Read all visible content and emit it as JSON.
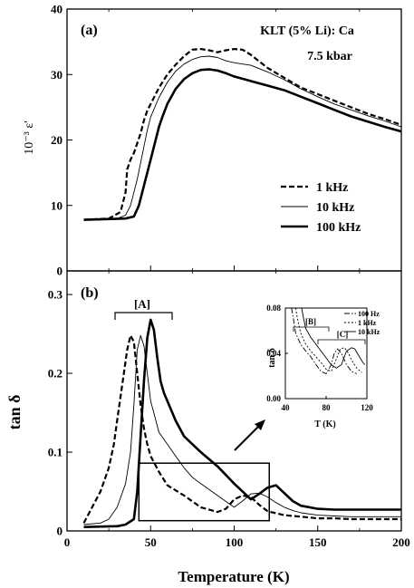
{
  "chart_data": [
    {
      "panel": "(a)",
      "type": "line",
      "annotation": [
        "KLT (5% Li): Ca",
        "7.5 kbar"
      ],
      "ylabel": "10⁻³ ε'",
      "xlim": [
        0,
        200
      ],
      "ylim": [
        0,
        40
      ],
      "yticks": [
        0,
        10,
        20,
        30,
        40
      ],
      "legend_position": "lower-right",
      "series": [
        {
          "name": "1 kHz",
          "style": "dashed",
          "x": [
            10,
            25,
            32,
            35,
            36,
            38,
            40,
            42,
            44,
            46,
            48,
            50,
            55,
            60,
            65,
            70,
            75,
            80,
            85,
            90,
            95,
            100,
            105,
            110,
            120,
            130,
            140,
            150,
            160,
            170,
            180,
            190,
            200
          ],
          "y": [
            7.8,
            8.0,
            9.0,
            12.0,
            15.5,
            17.0,
            18.0,
            19.5,
            21.0,
            23.0,
            24.5,
            25.5,
            28.0,
            30.0,
            31.5,
            32.8,
            33.8,
            33.9,
            33.7,
            33.4,
            33.7,
            33.9,
            33.8,
            33.0,
            31.0,
            29.5,
            28.0,
            27.0,
            26.0,
            25.0,
            24.0,
            23.2,
            22.3
          ]
        },
        {
          "name": "10 kHz",
          "style": "thin",
          "x": [
            10,
            30,
            35,
            38,
            40,
            42,
            44,
            46,
            48,
            50,
            55,
            60,
            65,
            70,
            75,
            80,
            85,
            90,
            95,
            100,
            105,
            110,
            120,
            130,
            140,
            150,
            160,
            170,
            180,
            190,
            200
          ],
          "y": [
            7.8,
            8.0,
            8.5,
            10.0,
            12.0,
            14.0,
            16.5,
            19.0,
            21.5,
            23.5,
            26.5,
            28.8,
            30.5,
            31.6,
            32.3,
            32.7,
            32.8,
            32.6,
            32.1,
            31.8,
            31.6,
            31.4,
            30.4,
            29.2,
            27.8,
            26.6,
            25.5,
            24.6,
            23.7,
            22.9,
            22.0
          ]
        },
        {
          "name": "100 kHz",
          "style": "thick",
          "x": [
            10,
            35,
            40,
            43,
            45,
            47,
            50,
            53,
            55,
            57,
            60,
            65,
            70,
            75,
            80,
            85,
            90,
            95,
            100,
            110,
            120,
            130,
            140,
            150,
            160,
            170,
            180,
            190,
            200
          ],
          "y": [
            7.8,
            8.0,
            8.3,
            10.0,
            12.0,
            14.0,
            17.0,
            20.0,
            22.0,
            23.5,
            25.5,
            27.8,
            29.3,
            30.2,
            30.7,
            30.8,
            30.6,
            30.2,
            29.7,
            29.0,
            28.3,
            27.6,
            26.6,
            25.6,
            24.6,
            23.6,
            22.8,
            22.0,
            21.3
          ]
        }
      ]
    },
    {
      "panel": "(b)",
      "type": "line",
      "xlabel": "Temperature (K)",
      "ylabel": "tan δ",
      "xlim": [
        0,
        200
      ],
      "ylim": [
        0,
        0.33
      ],
      "yticks": [
        0,
        0.1,
        0.2,
        0.3
      ],
      "xticks": [
        0,
        50,
        100,
        150,
        200
      ],
      "bracket_label": "[A]",
      "series": [
        {
          "name": "1 kHz",
          "style": "dashed",
          "x": [
            10,
            15,
            20,
            25,
            28,
            30,
            32,
            34,
            36,
            38,
            40,
            42,
            44,
            46,
            48,
            50,
            55,
            60,
            70,
            80,
            90,
            95,
            100,
            105,
            110,
            115,
            120,
            130,
            140,
            150,
            160,
            170,
            180,
            190,
            200
          ],
          "y": [
            0.01,
            0.03,
            0.05,
            0.08,
            0.11,
            0.14,
            0.17,
            0.2,
            0.23,
            0.248,
            0.24,
            0.2,
            0.16,
            0.13,
            0.11,
            0.095,
            0.075,
            0.058,
            0.045,
            0.03,
            0.024,
            0.028,
            0.04,
            0.045,
            0.043,
            0.033,
            0.025,
            0.02,
            0.018,
            0.016,
            0.016,
            0.015,
            0.015,
            0.015,
            0.015
          ]
        },
        {
          "name": "10 kHz",
          "style": "thin",
          "x": [
            10,
            20,
            25,
            30,
            35,
            38,
            40,
            42,
            44,
            46,
            48,
            50,
            55,
            60,
            65,
            70,
            75,
            80,
            90,
            100,
            105,
            110,
            115,
            120,
            125,
            130,
            135,
            140,
            150,
            160,
            170,
            180,
            190,
            200
          ],
          "y": [
            0.008,
            0.01,
            0.015,
            0.03,
            0.06,
            0.1,
            0.16,
            0.23,
            0.248,
            0.235,
            0.2,
            0.165,
            0.125,
            0.11,
            0.095,
            0.08,
            0.068,
            0.06,
            0.045,
            0.03,
            0.038,
            0.047,
            0.048,
            0.043,
            0.036,
            0.03,
            0.026,
            0.023,
            0.02,
            0.019,
            0.018,
            0.018,
            0.018,
            0.018
          ]
        },
        {
          "name": "100 kHz",
          "style": "thick",
          "x": [
            10,
            30,
            35,
            40,
            42,
            44,
            46,
            48,
            50,
            52,
            54,
            56,
            58,
            60,
            65,
            70,
            75,
            80,
            90,
            100,
            110,
            115,
            120,
            125,
            130,
            135,
            140,
            150,
            160,
            170,
            180,
            190,
            200
          ],
          "y": [
            0.005,
            0.006,
            0.008,
            0.015,
            0.05,
            0.12,
            0.19,
            0.245,
            0.268,
            0.255,
            0.22,
            0.19,
            0.175,
            0.165,
            0.14,
            0.12,
            0.11,
            0.1,
            0.082,
            0.06,
            0.04,
            0.047,
            0.055,
            0.058,
            0.048,
            0.038,
            0.032,
            0.028,
            0.027,
            0.027,
            0.027,
            0.027,
            0.027
          ]
        }
      ]
    },
    {
      "panel": "inset",
      "type": "line",
      "xlabel": "T (K)",
      "ylabel": "tan δ",
      "xlim": [
        40,
        120
      ],
      "ylim": [
        0,
        0.08
      ],
      "xticks": [
        40,
        80,
        120
      ],
      "yticks": [
        0.0,
        0.04,
        0.08
      ],
      "ytick_labels": [
        "0.00",
        "0.04",
        "0.08"
      ],
      "bracket_labels": [
        "[B]",
        "[C]"
      ],
      "legend": [
        {
          "name": "100 Hz",
          "style": "dashdot"
        },
        {
          "name": "1 kHz",
          "style": "dotted"
        },
        {
          "name": "10 kHz",
          "style": "thin"
        }
      ],
      "series": [
        {
          "name": "100 Hz",
          "style": "dashdot",
          "x": [
            46,
            48,
            50,
            55,
            60,
            65,
            70,
            75,
            80,
            85,
            88,
            91,
            95,
            100,
            105,
            110
          ],
          "y": [
            0.08,
            0.07,
            0.058,
            0.048,
            0.042,
            0.037,
            0.03,
            0.024,
            0.022,
            0.03,
            0.04,
            0.044,
            0.04,
            0.03,
            0.024,
            0.022
          ]
        },
        {
          "name": "1 kHz",
          "style": "dotted",
          "x": [
            50,
            52,
            55,
            60,
            65,
            70,
            75,
            80,
            85,
            90,
            94,
            98,
            102,
            105,
            110,
            115
          ],
          "y": [
            0.08,
            0.07,
            0.058,
            0.048,
            0.042,
            0.037,
            0.032,
            0.026,
            0.024,
            0.035,
            0.044,
            0.045,
            0.04,
            0.034,
            0.027,
            0.023
          ]
        },
        {
          "name": "10 kHz",
          "style": "thin",
          "x": [
            56,
            58,
            60,
            65,
            70,
            75,
            80,
            85,
            90,
            95,
            100,
            105,
            108,
            112,
            116,
            118
          ],
          "y": [
            0.08,
            0.07,
            0.062,
            0.054,
            0.048,
            0.042,
            0.036,
            0.03,
            0.027,
            0.03,
            0.042,
            0.045,
            0.044,
            0.038,
            0.032,
            0.03
          ]
        }
      ]
    }
  ]
}
